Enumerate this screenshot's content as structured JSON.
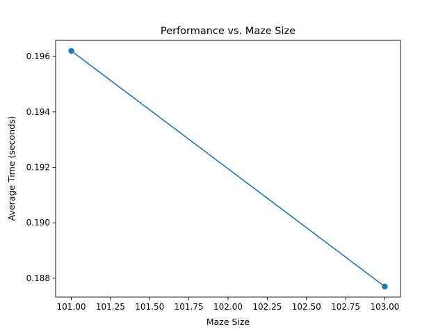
{
  "chart_data": {
    "type": "line",
    "title": "Performance vs. Maze Size",
    "xlabel": "Maze Size",
    "ylabel": "Average Time (seconds)",
    "xlim": [
      100.9,
      103.1
    ],
    "ylim": [
      0.18732,
      0.19658
    ],
    "xticks": [
      101.0,
      101.25,
      101.5,
      101.75,
      102.0,
      102.25,
      102.5,
      102.75,
      103.0
    ],
    "xtick_labels": [
      "101.00",
      "101.25",
      "101.50",
      "101.75",
      "102.00",
      "102.25",
      "102.50",
      "102.75",
      "103.00"
    ],
    "yticks": [
      0.188,
      0.19,
      0.192,
      0.194,
      0.196
    ],
    "ytick_labels": [
      "0.188",
      "0.190",
      "0.192",
      "0.194",
      "0.196"
    ],
    "grid": false,
    "series": [
      {
        "color": "#1f77b4",
        "marker": "circle",
        "x": [
          101,
          103
        ],
        "y": [
          0.1962,
          0.1877
        ]
      }
    ]
  }
}
